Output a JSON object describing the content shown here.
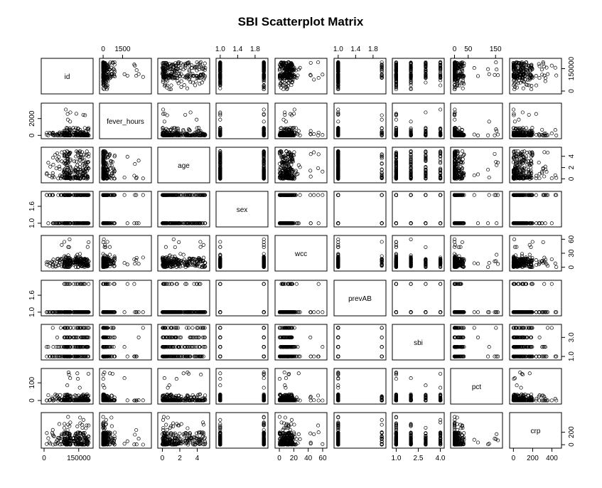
{
  "chart_data": {
    "type": "scatter",
    "title": "SBI Scatterplot Matrix",
    "variables": [
      {
        "name": "id",
        "range": [
          0,
          200000
        ],
        "ticks": [
          {
            "v": 0,
            "label": "0"
          },
          {
            "v": 150000,
            "label": "150000"
          }
        ]
      },
      {
        "name": "fever_hours",
        "range": [
          -60,
          3500
        ],
        "ticks": [
          {
            "v": 0,
            "label": "0"
          },
          {
            "v": 1500,
            "label": "1500"
          },
          {
            "v": 2000,
            "label": "2000"
          }
        ]
      },
      {
        "name": "age",
        "range": [
          -0.2,
          5.1
        ],
        "ticks": [
          {
            "v": 0,
            "label": "0"
          },
          {
            "v": 2,
            "label": "2"
          },
          {
            "v": 4,
            "label": "4"
          }
        ]
      },
      {
        "name": "sex",
        "range": [
          0.97,
          2.03
        ],
        "ticks": [
          {
            "v": 1.0,
            "label": "1.0"
          },
          {
            "v": 1.4,
            "label": "1.4"
          },
          {
            "v": 1.6,
            "label": "1.6"
          },
          {
            "v": 1.8,
            "label": "1.8"
          }
        ]
      },
      {
        "name": "wcc",
        "range": [
          -2,
          62
        ],
        "ticks": [
          {
            "v": 0,
            "label": "0"
          },
          {
            "v": 20,
            "label": "20"
          },
          {
            "v": 30,
            "label": "30"
          },
          {
            "v": 40,
            "label": "40"
          },
          {
            "v": 60,
            "label": "60"
          }
        ]
      },
      {
        "name": "prevAB",
        "range": [
          0.97,
          2.03
        ],
        "ticks": [
          {
            "v": 1.0,
            "label": "1.0"
          },
          {
            "v": 1.4,
            "label": "1.4"
          },
          {
            "v": 1.6,
            "label": "1.6"
          },
          {
            "v": 1.8,
            "label": "1.8"
          }
        ]
      },
      {
        "name": "sbi",
        "range": [
          0.93,
          4.07
        ],
        "ticks": [
          {
            "v": 1.0,
            "label": "1.0"
          },
          {
            "v": 2.5,
            "label": "2.5"
          },
          {
            "v": 3.0,
            "label": "3.0"
          },
          {
            "v": 4.0,
            "label": "4.0"
          }
        ]
      },
      {
        "name": "pct",
        "range": [
          -4,
          165
        ],
        "ticks": [
          {
            "v": 0,
            "label": "0"
          },
          {
            "v": 50,
            "label": "50"
          },
          {
            "v": 100,
            "label": "100"
          },
          {
            "v": 150,
            "label": "150"
          }
        ]
      },
      {
        "name": "crp",
        "range": [
          -10,
          470
        ],
        "ticks": [
          {
            "v": 0,
            "label": "0"
          },
          {
            "v": 200,
            "label": "200"
          },
          {
            "v": 400,
            "label": "400"
          }
        ]
      }
    ],
    "axes": {
      "top": [
        {
          "var": 1,
          "ticks": [
            "0",
            "1500"
          ]
        },
        {
          "var": 3,
          "ticks": [
            "1.0",
            "1.4",
            "1.8"
          ]
        },
        {
          "var": 5,
          "ticks": [
            "1.0",
            "1.4",
            "1.8"
          ]
        },
        {
          "var": 7,
          "ticks": [
            "0",
            "50",
            "150"
          ]
        }
      ],
      "bottom": [
        {
          "var": 0,
          "ticks": [
            "0",
            "150000"
          ]
        },
        {
          "var": 2,
          "ticks": [
            "0",
            "2",
            "4"
          ]
        },
        {
          "var": 4,
          "ticks": [
            "0",
            "20",
            "40",
            "60"
          ]
        },
        {
          "var": 6,
          "ticks": [
            "1.0",
            "2.5",
            "4.0"
          ]
        },
        {
          "var": 8,
          "ticks": [
            "0",
            "200",
            "400"
          ]
        }
      ],
      "left": [
        {
          "var": 1,
          "ticks": [
            "0",
            "2000"
          ]
        },
        {
          "var": 3,
          "ticks": [
            "1.0",
            "1.6"
          ]
        },
        {
          "var": 5,
          "ticks": [
            "1.0",
            "1.6"
          ]
        },
        {
          "var": 7,
          "ticks": [
            "0",
            "100"
          ]
        }
      ],
      "right": [
        {
          "var": 0,
          "ticks": [
            "0",
            "150000"
          ]
        },
        {
          "var": 2,
          "ticks": [
            "0",
            "2",
            "4"
          ]
        },
        {
          "var": 4,
          "ticks": [
            "0",
            "30",
            "60"
          ]
        },
        {
          "var": 6,
          "ticks": [
            "1.0",
            "3.0"
          ]
        },
        {
          "var": 8,
          "ticks": [
            "0",
            "200"
          ]
        }
      ]
    },
    "n_observations": 220,
    "grid": false,
    "legend": "none",
    "point_color": "#000000",
    "background": "#ffffff"
  }
}
